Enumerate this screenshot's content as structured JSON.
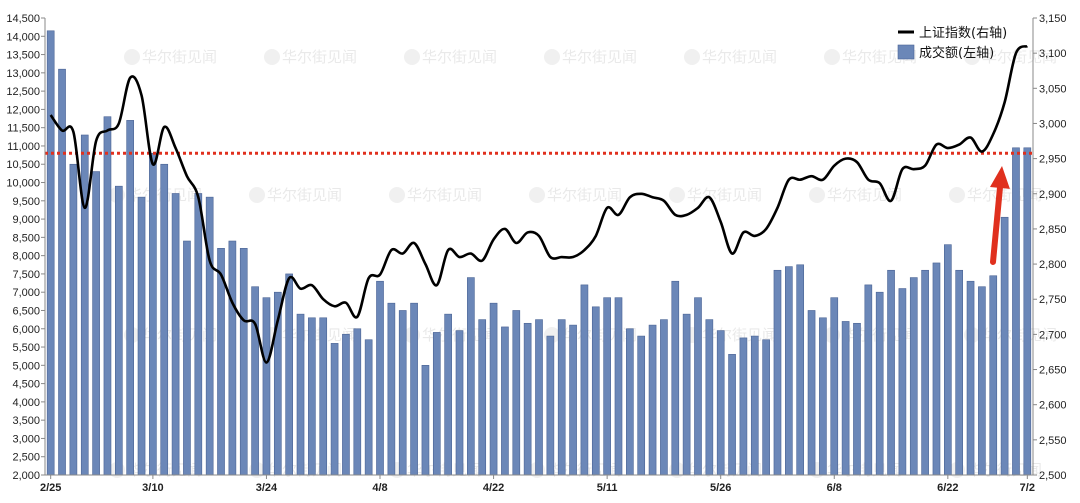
{
  "chart_data": {
    "type": "bar+line",
    "title": "",
    "xlabel": "",
    "ylabel_left": "",
    "ylabel_right": "",
    "left_axis": {
      "min": 2000,
      "max": 14500,
      "step": 500
    },
    "right_axis": {
      "min": 2500,
      "max": 3150,
      "step": 50
    },
    "x_tick_labels": [
      "2/25",
      "3/10",
      "3/24",
      "4/8",
      "4/22",
      "5/11",
      "5/26",
      "6/8",
      "6/22",
      "7/2"
    ],
    "x_tick_indices": [
      0,
      9,
      19,
      29,
      39,
      49,
      59,
      69,
      79,
      86
    ],
    "reference_line": {
      "axis": "left",
      "value": 10800,
      "style": "dotted",
      "color": "#e0301e"
    },
    "annotation": {
      "type": "arrow",
      "color": "#e0301e"
    },
    "series": [
      {
        "name": "上证指数(右轴)",
        "type": "line",
        "axis": "right",
        "color": "#000000",
        "values": [
          3012,
          2990,
          2988,
          2880,
          2975,
          2990,
          3000,
          3065,
          3040,
          2942,
          2995,
          2965,
          2925,
          2895,
          2805,
          2785,
          2745,
          2720,
          2715,
          2660,
          2720,
          2780,
          2765,
          2770,
          2750,
          2740,
          2745,
          2725,
          2780,
          2785,
          2820,
          2815,
          2830,
          2800,
          2770,
          2820,
          2810,
          2815,
          2805,
          2835,
          2850,
          2830,
          2845,
          2840,
          2810,
          2810,
          2810,
          2820,
          2840,
          2880,
          2870,
          2895,
          2900,
          2895,
          2890,
          2870,
          2870,
          2880,
          2895,
          2860,
          2815,
          2845,
          2840,
          2850,
          2880,
          2920,
          2920,
          2925,
          2920,
          2940,
          2950,
          2945,
          2920,
          2915,
          2890,
          2935,
          2935,
          2940,
          2970,
          2965,
          2970,
          2980,
          2960,
          2985,
          3030,
          3100,
          3110
        ]
      },
      {
        "name": "成交额(左轴)",
        "type": "bar",
        "axis": "left",
        "color": "#6b87b8",
        "values": [
          14150,
          13100,
          10500,
          11300,
          10300,
          11800,
          9900,
          11700,
          9600,
          10800,
          10500,
          9700,
          8400,
          9700,
          9600,
          8200,
          8400,
          8200,
          7150,
          6850,
          7000,
          7500,
          6400,
          6300,
          6300,
          5600,
          5850,
          6000,
          5700,
          7300,
          6700,
          6500,
          6700,
          5000,
          5900,
          6400,
          5950,
          7400,
          6250,
          6700,
          6050,
          6500,
          6150,
          6250,
          5800,
          6250,
          6100,
          7200,
          6600,
          6850,
          6850,
          6000,
          5800,
          6100,
          6250,
          7300,
          6400,
          6850,
          6250,
          5950,
          5300,
          5750,
          5800,
          5700,
          7600,
          7700,
          7750,
          6500,
          6300,
          6850,
          6200,
          6150,
          7200,
          7000,
          7600,
          7100,
          7400,
          7600,
          7800,
          8300,
          7600,
          7300,
          7150,
          7450,
          9050,
          10950,
          10950
        ]
      }
    ],
    "legend": {
      "position": "top-right"
    }
  }
}
